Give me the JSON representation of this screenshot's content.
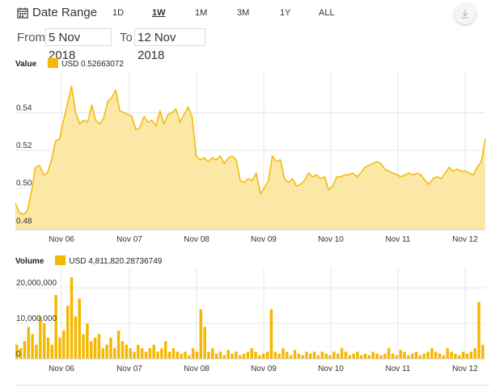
{
  "toolbar": {
    "date_range_label": "Date Range",
    "ranges": [
      {
        "label": "1D",
        "active": false
      },
      {
        "label": "1W",
        "active": true
      },
      {
        "label": "1M",
        "active": false
      },
      {
        "label": "3M",
        "active": false
      },
      {
        "label": "1Y",
        "active": false
      },
      {
        "label": "ALL",
        "active": false
      }
    ],
    "download_icon": "download-icon",
    "calendar_icon": "calendar-icon"
  },
  "date_filter": {
    "from_label": "From",
    "from_value": "5 Nov 2018",
    "to_label": "To",
    "to_value": "12 Nov 2018"
  },
  "colors": {
    "accent": "#f5b800",
    "fill": "#fbe7a6",
    "grid": "#e6e6e6"
  },
  "chart_data": [
    {
      "type": "area",
      "legend_title": "Value",
      "series_name": "USD",
      "current_value": "0.52663072",
      "x_ticks": [
        "Nov 06",
        "Nov 07",
        "Nov 08",
        "Nov 09",
        "Nov 10",
        "Nov 11",
        "Nov 12"
      ],
      "y_ticks": [
        "0.48",
        "0.50",
        "0.52",
        "0.54"
      ],
      "ylim": [
        0.478,
        0.562
      ],
      "grid": true,
      "values": [
        0.492,
        0.487,
        0.486,
        0.488,
        0.498,
        0.511,
        0.512,
        0.507,
        0.508,
        0.515,
        0.525,
        0.526,
        0.536,
        0.545,
        0.554,
        0.54,
        0.534,
        0.536,
        0.535,
        0.544,
        0.536,
        0.534,
        0.537,
        0.546,
        0.548,
        0.552,
        0.541,
        0.54,
        0.539,
        0.538,
        0.531,
        0.532,
        0.538,
        0.535,
        0.536,
        0.533,
        0.541,
        0.534,
        0.539,
        0.54,
        0.542,
        0.535,
        0.539,
        0.543,
        0.538,
        0.517,
        0.515,
        0.516,
        0.514,
        0.516,
        0.515,
        0.517,
        0.513,
        0.516,
        0.517,
        0.515,
        0.504,
        0.503,
        0.505,
        0.504,
        0.508,
        0.497,
        0.5,
        0.504,
        0.517,
        0.514,
        0.515,
        0.505,
        0.503,
        0.505,
        0.501,
        0.502,
        0.504,
        0.508,
        0.506,
        0.507,
        0.505,
        0.506,
        0.499,
        0.501,
        0.506,
        0.506,
        0.507,
        0.507,
        0.508,
        0.506,
        0.508,
        0.511,
        0.512,
        0.513,
        0.514,
        0.513,
        0.51,
        0.509,
        0.508,
        0.507,
        0.506,
        0.507,
        0.508,
        0.507,
        0.508,
        0.507,
        0.504,
        0.502,
        0.505,
        0.506,
        0.505,
        0.508,
        0.511,
        0.509,
        0.51,
        0.509,
        0.509,
        0.508,
        0.507,
        0.511,
        0.514,
        0.526
      ]
    },
    {
      "type": "bar",
      "legend_title": "Volume",
      "series_name": "USD",
      "current_value": "4,811,820.28736749",
      "x_ticks": [
        "Nov 06",
        "Nov 07",
        "Nov 08",
        "Nov 09",
        "Nov 10",
        "Nov 11",
        "Nov 12"
      ],
      "y_ticks": [
        "0",
        "10,000,000",
        "20,000,000"
      ],
      "ylim": [
        0,
        25500000
      ],
      "grid": true,
      "values": [
        4000000,
        3000000,
        5000000,
        9000000,
        7000000,
        4000000,
        12000000,
        10000000,
        6000000,
        4000000,
        18000000,
        6000000,
        8000000,
        15000000,
        23000000,
        12000000,
        17000000,
        7000000,
        10000000,
        5000000,
        6000000,
        7000000,
        3000000,
        4000000,
        6000000,
        3000000,
        8000000,
        5000000,
        4000000,
        3000000,
        2000000,
        4000000,
        3000000,
        2000000,
        3000000,
        4000000,
        2000000,
        3000000,
        5000000,
        2000000,
        3000000,
        2000000,
        1500000,
        2000000,
        1000000,
        3000000,
        2000000,
        14000000,
        9000000,
        2000000,
        3000000,
        1500000,
        2000000,
        1000000,
        2500000,
        1500000,
        2000000,
        1000000,
        1500000,
        2000000,
        3000000,
        2000000,
        1000000,
        1500000,
        2000000,
        14000000,
        2000000,
        1500000,
        3000000,
        2000000,
        1000000,
        2500000,
        1500000,
        1000000,
        2000000,
        1500000,
        2000000,
        1000000,
        2000000,
        1500000,
        1000000,
        2000000,
        1500000,
        3000000,
        2000000,
        1000000,
        1500000,
        2000000,
        1000000,
        1500000,
        1000000,
        2000000,
        1500000,
        1000000,
        1500000,
        3000000,
        1500000,
        1000000,
        2500000,
        2000000,
        1000000,
        1500000,
        2000000,
        1000000,
        1500000,
        2000000,
        3000000,
        2000000,
        1500000,
        1000000,
        3000000,
        2000000,
        1500000,
        1000000,
        2000000,
        1500000,
        2000000,
        3000000,
        16000000,
        4000000
      ]
    }
  ]
}
